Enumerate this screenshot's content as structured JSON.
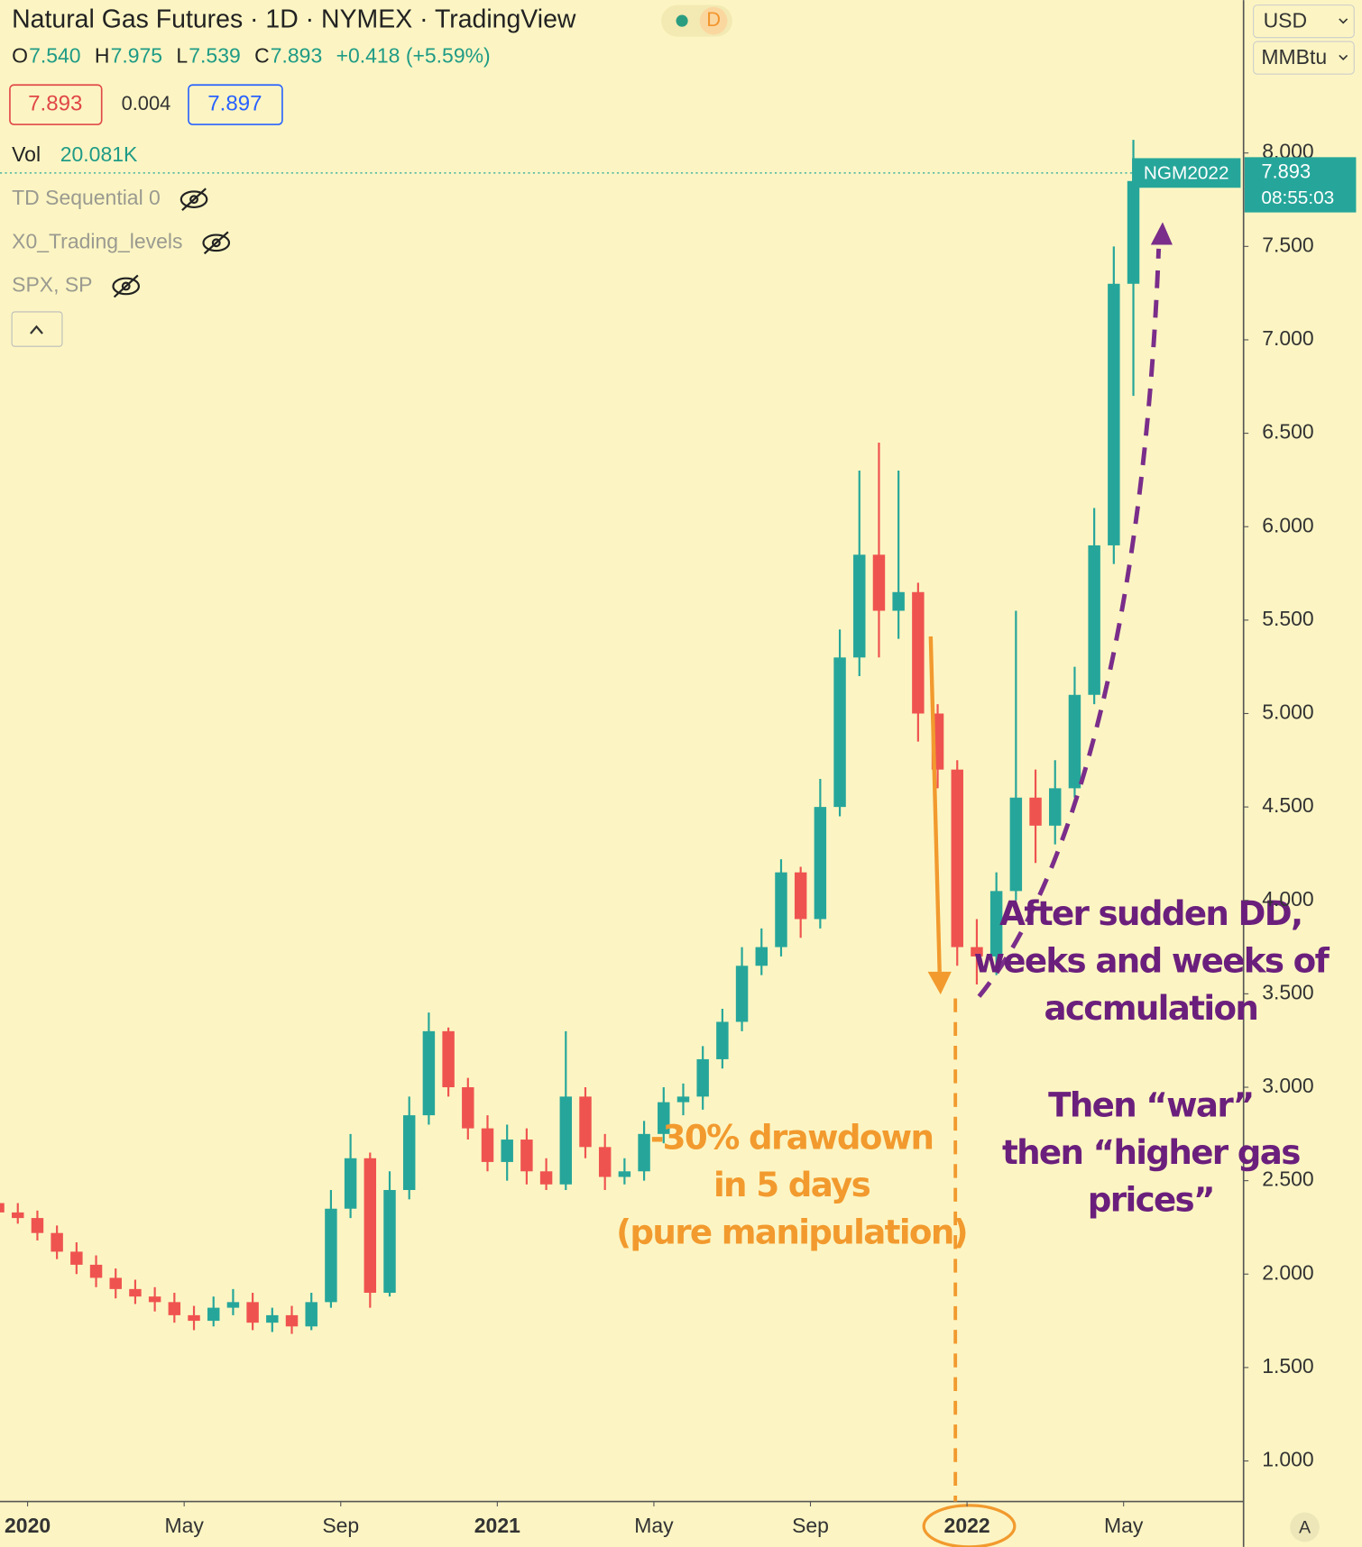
{
  "header": {
    "title": "Natural Gas Futures · 1D · NYMEX · TradingView",
    "badge": "D",
    "ohlc": [
      {
        "label": "O",
        "value": "7.540"
      },
      {
        "label": "H",
        "value": "7.975"
      },
      {
        "label": "L",
        "value": "7.539"
      },
      {
        "label": "C",
        "value": "7.893"
      }
    ],
    "change": "+0.418 (+5.59%)",
    "bid": "7.893",
    "spread": "0.004",
    "ask": "7.897",
    "volume_label": "Vol",
    "volume_value": "20.081K",
    "indicators": [
      "TD Sequential 0",
      "X0_Trading_levels",
      "SPX, SP"
    ],
    "currency": "USD",
    "unit": "MMBtu",
    "auto": "A"
  },
  "chart_data": {
    "type": "candlestick",
    "open": [
      2.38,
      2.33,
      2.3,
      2.22,
      2.12,
      2.05,
      1.98,
      1.92,
      1.88,
      1.85,
      1.78,
      1.75,
      1.82,
      1.85,
      1.74,
      1.78,
      1.72,
      1.85,
      2.35,
      2.62,
      1.9,
      2.45,
      2.85,
      3.3,
      3.0,
      2.78,
      2.6,
      2.72,
      2.55,
      2.48,
      2.95,
      2.68,
      2.52,
      2.55,
      2.75,
      2.92,
      2.95,
      3.15,
      3.35,
      3.65,
      3.75,
      4.15,
      3.9,
      4.5,
      5.3,
      5.85,
      5.55,
      5.65,
      5.0,
      4.7,
      3.75,
      3.7,
      4.05,
      4.55,
      4.4,
      4.6,
      5.1,
      5.9,
      7.3
    ],
    "high": [
      2.42,
      2.38,
      2.34,
      2.26,
      2.17,
      2.1,
      2.03,
      1.97,
      1.93,
      1.9,
      1.83,
      1.88,
      1.92,
      1.9,
      1.82,
      1.83,
      1.9,
      2.45,
      2.75,
      2.65,
      2.55,
      2.95,
      3.4,
      3.32,
      3.05,
      2.85,
      2.8,
      2.78,
      2.62,
      3.3,
      3.0,
      2.75,
      2.62,
      2.82,
      3.0,
      3.02,
      3.22,
      3.42,
      3.75,
      3.85,
      4.22,
      4.18,
      4.65,
      5.45,
      6.3,
      6.45,
      6.3,
      5.7,
      5.05,
      4.75,
      3.9,
      4.15,
      5.55,
      4.7,
      4.75,
      5.25,
      6.1,
      7.5,
      8.07
    ],
    "low": [
      2.3,
      2.27,
      2.18,
      2.08,
      2.0,
      1.93,
      1.87,
      1.84,
      1.8,
      1.74,
      1.7,
      1.72,
      1.78,
      1.7,
      1.69,
      1.68,
      1.7,
      1.82,
      2.3,
      1.82,
      1.88,
      2.4,
      2.8,
      2.95,
      2.72,
      2.55,
      2.5,
      2.48,
      2.45,
      2.45,
      2.62,
      2.45,
      2.48,
      2.5,
      2.7,
      2.85,
      2.88,
      3.1,
      3.3,
      3.6,
      3.7,
      3.8,
      3.85,
      4.45,
      5.2,
      5.3,
      5.4,
      4.85,
      4.6,
      3.65,
      3.55,
      3.6,
      4.0,
      4.2,
      4.3,
      4.55,
      5.05,
      5.8,
      6.7
    ],
    "close": [
      2.33,
      2.3,
      2.22,
      2.12,
      2.05,
      1.98,
      1.92,
      1.88,
      1.85,
      1.78,
      1.75,
      1.82,
      1.85,
      1.74,
      1.78,
      1.72,
      1.85,
      2.35,
      2.62,
      1.9,
      2.45,
      2.85,
      3.3,
      3.0,
      2.78,
      2.6,
      2.72,
      2.55,
      2.48,
      2.95,
      2.68,
      2.52,
      2.55,
      2.75,
      2.92,
      2.95,
      3.15,
      3.35,
      3.65,
      3.75,
      4.15,
      3.9,
      4.5,
      5.3,
      5.85,
      5.55,
      5.65,
      5.0,
      4.7,
      3.75,
      3.7,
      4.05,
      4.55,
      4.4,
      4.6,
      5.1,
      5.9,
      7.3,
      7.85
    ],
    "up_color": "#26a69a",
    "down_color": "#ef5350",
    "xlim": [
      0.59,
      64.13
    ],
    "xticks": [
      {
        "value": 2,
        "label": "2020"
      },
      {
        "value": 10,
        "label": "May"
      },
      {
        "value": 18,
        "label": "Sep"
      },
      {
        "value": 26,
        "label": "2021"
      },
      {
        "value": 34,
        "label": "May"
      },
      {
        "value": 42,
        "label": "Sep"
      },
      {
        "value": 50,
        "label": "2022"
      },
      {
        "value": 58,
        "label": "May"
      }
    ],
    "ylim": [
      0.783,
      8.818
    ],
    "yticks": [
      {
        "value": 1,
        "label": "1.000"
      },
      {
        "value": 1.5,
        "label": "1.500"
      },
      {
        "value": 2,
        "label": "2.000"
      },
      {
        "value": 2.5,
        "label": "2.500"
      },
      {
        "value": 3,
        "label": "3.000"
      },
      {
        "value": 3.5,
        "label": "3.500"
      },
      {
        "value": 4,
        "label": "4.000"
      },
      {
        "value": 4.5,
        "label": "4.500"
      },
      {
        "value": 5,
        "label": "5.000"
      },
      {
        "value": 5.5,
        "label": "5.500"
      },
      {
        "value": 6,
        "label": "6.000"
      },
      {
        "value": 6.5,
        "label": "6.500"
      },
      {
        "value": 7,
        "label": "7.000"
      },
      {
        "value": 7.5,
        "label": "7.500"
      },
      {
        "value": 8,
        "label": "8.000"
      }
    ],
    "grid": false,
    "last_price": 7.893,
    "last_price_label": "NGM2022",
    "countdown": "08:55:03",
    "annotations": {
      "orange": [
        "-30% drawdown",
        "in 5 days",
        "(pure manipulation)"
      ],
      "purple_1": [
        "After sudden DD,",
        "weeks and weeks of",
        "accmulation"
      ],
      "purple_2": [
        "Then “war”",
        "then “higher gas",
        "prices”"
      ]
    }
  }
}
